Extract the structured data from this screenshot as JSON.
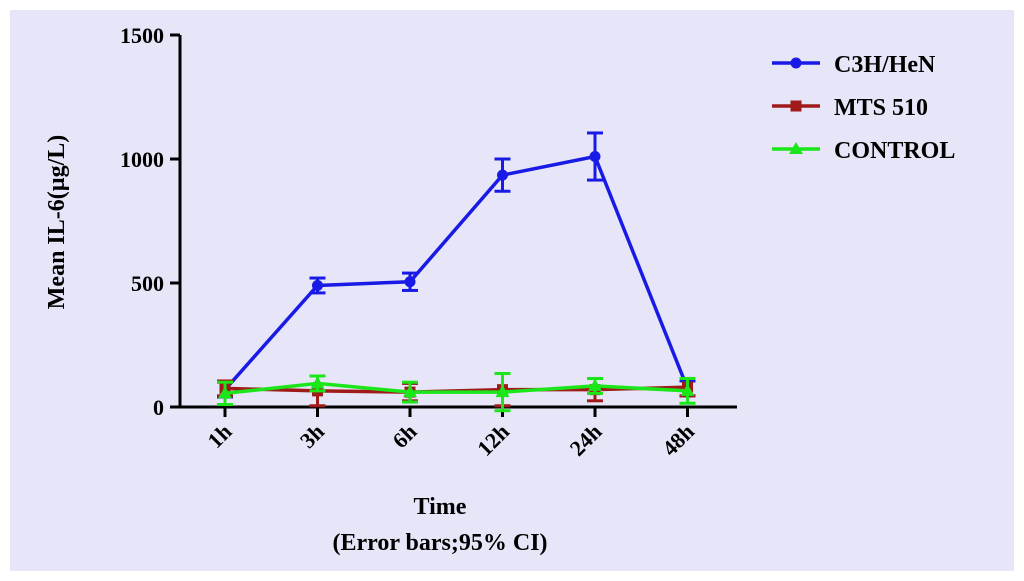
{
  "chart_data": {
    "type": "line",
    "title": "",
    "xlabel": "Time",
    "xlabel_note": "(Error bars;95% CI)",
    "ylabel": "Mean IL-6(µg/L)",
    "categories": [
      "1h",
      "3h",
      "6h",
      "12h",
      "24h",
      "48h"
    ],
    "yticks": [
      0,
      500,
      1000,
      1500
    ],
    "ylim": [
      0,
      1500
    ],
    "grid": false,
    "legend_position": "top-right",
    "series": [
      {
        "name": "C3H/HeN",
        "color": "#1a1ae6",
        "marker": "circle",
        "values": [
          70,
          490,
          505,
          935,
          1010,
          75
        ],
        "error": [
          30,
          30,
          35,
          65,
          95,
          30
        ]
      },
      {
        "name": "MTS 510",
        "color": "#a01a1a",
        "marker": "square",
        "values": [
          75,
          65,
          60,
          70,
          70,
          80
        ],
        "error": [
          30,
          60,
          35,
          65,
          45,
          35
        ]
      },
      {
        "name": "CONTROL",
        "color": "#1ae61a",
        "marker": "triangle",
        "values": [
          55,
          95,
          60,
          60,
          85,
          65
        ],
        "error": [
          45,
          30,
          40,
          75,
          30,
          50
        ]
      }
    ]
  }
}
